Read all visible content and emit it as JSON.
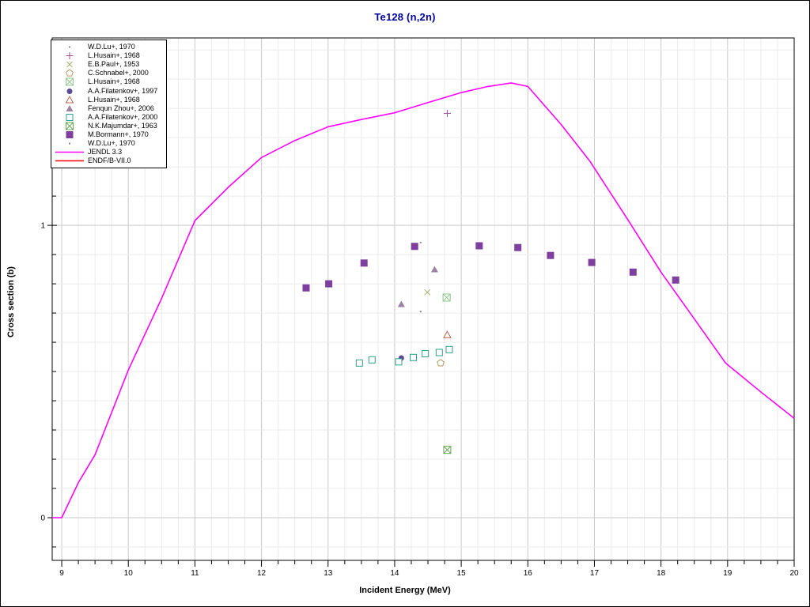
{
  "title": "Te128 (n,2n)",
  "axes": {
    "x_label": "Incident Energy (MeV)",
    "y_label": "Cross section (b)",
    "x_tick_labels": [
      "9",
      "10",
      "11",
      "12",
      "13",
      "14",
      "15",
      "16",
      "17",
      "18",
      "19",
      "20"
    ],
    "y_tick_labels": [
      "0",
      "1"
    ]
  },
  "colors": {
    "title": "#0000a0",
    "frame": "#000000",
    "grid_minor": "#ebebeb",
    "grid_major": "#c9c9c9",
    "jendl": "#ff00ff",
    "endf": "#ff0000"
  },
  "chart_data": {
    "type": "scatter",
    "title": "Te128 (n,2n)",
    "xlabel": "Incident Energy (MeV)",
    "ylabel": "Cross section (b)",
    "xlim": [
      8.857,
      20
    ],
    "ylim": [
      -0.146,
      1.641
    ],
    "x_major_ticks": [
      9,
      10,
      11,
      12,
      13,
      14,
      15,
      16,
      17,
      18,
      19,
      20
    ],
    "x_minor_step": 0.25,
    "y_labeled_ticks": [
      0,
      1
    ],
    "y_minor_step": 0.1,
    "grid": "minor+major",
    "legend_position": "top-left",
    "series": [
      {
        "name": "W.D.Lu+, 1970",
        "marker": "dot",
        "color": "#8a8a8a",
        "points": [
          [
            14.39,
            0.941
          ]
        ]
      },
      {
        "name": "L.Husain+, 1968",
        "marker": "plus",
        "color": "#a0508f",
        "points": [
          [
            14.79,
            1.383
          ]
        ]
      },
      {
        "name": "E.B.Paul+, 1953",
        "marker": "x",
        "color": "#9fae67",
        "points": [
          [
            14.49,
            0.771
          ]
        ]
      },
      {
        "name": "C.Schnabel+, 2000",
        "marker": "pentagon-open",
        "color": "#b59b5f",
        "points": [
          [
            14.69,
            0.529
          ]
        ]
      },
      {
        "name": "L.Husain+, 1968",
        "marker": "square-cross",
        "color": "#90c98e",
        "points": [
          [
            14.78,
            0.753
          ]
        ]
      },
      {
        "name": "A.A.Filatenkov+, 1997",
        "marker": "circle-filled",
        "color": "#5a4796",
        "points": [
          [
            14.1,
            0.546
          ]
        ]
      },
      {
        "name": "L.Husain+, 1968",
        "marker": "triangle-open",
        "color": "#b2604e",
        "points": [
          [
            14.79,
            0.625
          ]
        ]
      },
      {
        "name": "Fenqun Zhou+, 2006",
        "marker": "triangle-filled",
        "color": "#9c82a3",
        "points": [
          [
            14.1,
            0.73
          ],
          [
            14.6,
            0.849
          ]
        ]
      },
      {
        "name": "A.A.Filatenkov+, 2000",
        "marker": "square-open",
        "color": "#2fa08c",
        "points": [
          [
            13.47,
            0.529
          ],
          [
            13.66,
            0.54
          ],
          [
            14.06,
            0.533
          ],
          [
            14.28,
            0.548
          ],
          [
            14.46,
            0.561
          ],
          [
            14.67,
            0.565
          ],
          [
            14.82,
            0.575
          ]
        ]
      },
      {
        "name": "N.K.Majumdar+, 1963",
        "marker": "square-cross",
        "color": "#63a84f",
        "points": [
          [
            14.79,
            0.232
          ]
        ]
      },
      {
        "name": "M.Bormann+, 1970",
        "marker": "square-filled",
        "color": "#7e3f9e",
        "points": [
          [
            12.67,
            0.786
          ],
          [
            13.01,
            0.8
          ],
          [
            13.54,
            0.871
          ],
          [
            14.3,
            0.928
          ],
          [
            15.27,
            0.93
          ],
          [
            15.85,
            0.924
          ],
          [
            16.34,
            0.897
          ],
          [
            16.96,
            0.873
          ],
          [
            17.58,
            0.84
          ],
          [
            18.22,
            0.813
          ]
        ]
      },
      {
        "name": "W.D.Lu+, 1970",
        "marker": "dot",
        "color": "#8a8a8a",
        "points": [
          [
            14.39,
            0.705
          ]
        ]
      }
    ],
    "curves": [
      {
        "name": "JENDL 3.3",
        "color": "#ff00ff",
        "points": [
          [
            8.857,
            0
          ],
          [
            9.0,
            0.0
          ],
          [
            9.25,
            0.12
          ],
          [
            9.5,
            0.215
          ],
          [
            10.0,
            0.505
          ],
          [
            10.5,
            0.75
          ],
          [
            11.0,
            1.016
          ],
          [
            11.5,
            1.13
          ],
          [
            12.0,
            1.232
          ],
          [
            12.5,
            1.29
          ],
          [
            13.0,
            1.337
          ],
          [
            13.5,
            1.362
          ],
          [
            14.0,
            1.385
          ],
          [
            14.5,
            1.42
          ],
          [
            15.0,
            1.454
          ],
          [
            15.4,
            1.475
          ],
          [
            15.75,
            1.487
          ],
          [
            16.0,
            1.475
          ],
          [
            16.5,
            1.345
          ],
          [
            16.93,
            1.22
          ],
          [
            17.5,
            1.02
          ],
          [
            18.0,
            0.84
          ],
          [
            18.5,
            0.68
          ],
          [
            18.97,
            0.529
          ],
          [
            19.5,
            0.43
          ],
          [
            20.0,
            0.34
          ]
        ]
      },
      {
        "name": "ENDF/B-VII.0",
        "color": "#ff0000",
        "points": []
      }
    ]
  }
}
